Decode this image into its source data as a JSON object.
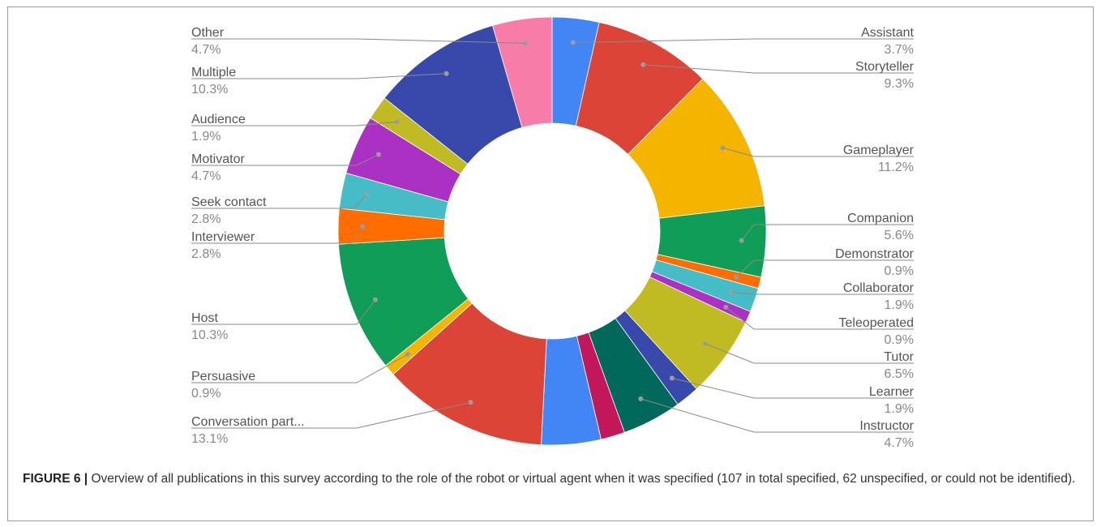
{
  "chart_data": {
    "type": "pie",
    "donut": true,
    "slices": [
      {
        "label": "Assistant",
        "pct_text": "3.7%",
        "value": 3.7,
        "color": "#4285f4",
        "side": "right"
      },
      {
        "label": "Storyteller",
        "pct_text": "9.3%",
        "value": 9.3,
        "color": "#db4437",
        "side": "right"
      },
      {
        "label": "Gameplayer",
        "pct_text": "11.2%",
        "value": 11.2,
        "color": "#f4b400",
        "side": "right"
      },
      {
        "label": "Companion",
        "pct_text": "5.6%",
        "value": 5.6,
        "color": "#0f9d58",
        "side": "right"
      },
      {
        "label": "Demonstrator",
        "pct_text": "0.9%",
        "value": 0.9,
        "color": "#ff6d00",
        "side": "right"
      },
      {
        "label": "Collaborator",
        "pct_text": "1.9%",
        "value": 1.9,
        "color": "#46bdc6",
        "side": "right"
      },
      {
        "label": "Teleoperated",
        "pct_text": "0.9%",
        "value": 0.9,
        "color": "#ab30c4",
        "side": "right"
      },
      {
        "label": "Tutor",
        "pct_text": "6.5%",
        "value": 6.5,
        "color": "#c0bb22",
        "side": "right"
      },
      {
        "label": "Learner",
        "pct_text": "1.9%",
        "value": 1.9,
        "color": "#3949ab",
        "side": "right"
      },
      {
        "label": "Instructor",
        "pct_text": "4.7%",
        "value": 4.7,
        "color": "#00695c",
        "side": "right"
      },
      {
        "label": "",
        "pct_text": "",
        "value": 1.9,
        "color": "#c2185b",
        "side": "none"
      },
      {
        "label": "",
        "pct_text": "",
        "value": 4.7,
        "color": "#4285f4",
        "side": "none"
      },
      {
        "label": "Conversation part...",
        "pct_text": "13.1%",
        "value": 13.1,
        "color": "#db4437",
        "side": "left"
      },
      {
        "label": "Persuasive",
        "pct_text": "0.9%",
        "value": 0.9,
        "color": "#f4b400",
        "side": "left"
      },
      {
        "label": "Host",
        "pct_text": "10.3%",
        "value": 10.3,
        "color": "#0f9d58",
        "side": "left"
      },
      {
        "label": "Interviewer",
        "pct_text": "2.8%",
        "value": 2.8,
        "color": "#ff6d00",
        "side": "left"
      },
      {
        "label": "Seek contact",
        "pct_text": "2.8%",
        "value": 2.8,
        "color": "#46bdc6",
        "side": "left"
      },
      {
        "label": "Motivator",
        "pct_text": "4.7%",
        "value": 4.7,
        "color": "#ab30c4",
        "side": "left"
      },
      {
        "label": "Audience",
        "pct_text": "1.9%",
        "value": 1.9,
        "color": "#c0bb22",
        "side": "left"
      },
      {
        "label": "Multiple",
        "pct_text": "10.3%",
        "value": 10.3,
        "color": "#3949ab",
        "side": "left"
      },
      {
        "label": "Other",
        "pct_text": "4.7%",
        "value": 4.7,
        "color": "#f77ca8",
        "side": "left"
      }
    ]
  },
  "caption": {
    "label": "FIGURE 6 |",
    "text": " Overview of all publications in this survey according to the role of the robot or virtual agent when it was specified (107 in total specified, 62 unspecified, or could not be identified)."
  }
}
